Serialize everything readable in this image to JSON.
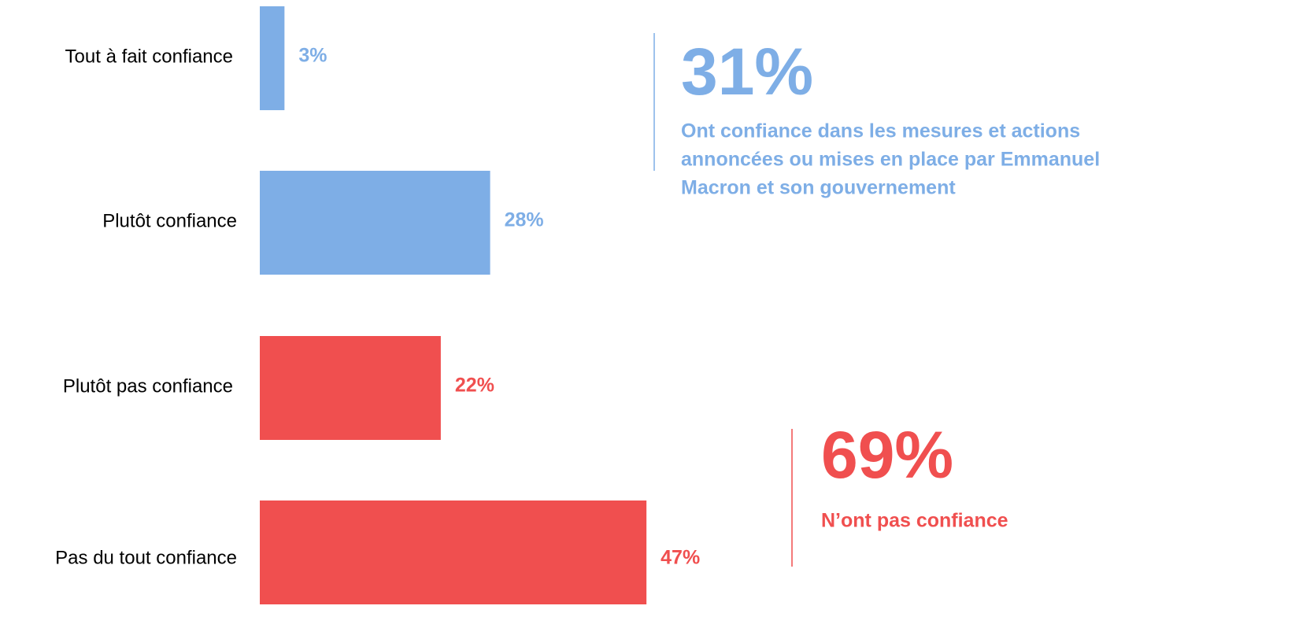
{
  "chart_data": {
    "type": "bar",
    "orientation": "horizontal",
    "categories": [
      "Tout à fait confiance",
      "Plutôt confiance",
      "Plutôt pas confiance",
      "Pas du tout confiance"
    ],
    "values": [
      3,
      28,
      22,
      47
    ],
    "value_labels": [
      "3%",
      "28%",
      "22%",
      "47%"
    ],
    "colors": [
      "#7eaee6",
      "#7eaee6",
      "#f04f4f",
      "#f04f4f"
    ],
    "annotations": [
      {
        "value": "31%",
        "text": [
          "Ont confiance dans les mesures et actions",
          "annoncées ou mises en place par Emmanuel",
          "Macron et son gouvernement"
        ],
        "color": "#7eaee6"
      },
      {
        "value": "69%",
        "text": [
          "N’ont pas confiance"
        ],
        "color": "#f04f4f"
      }
    ]
  }
}
